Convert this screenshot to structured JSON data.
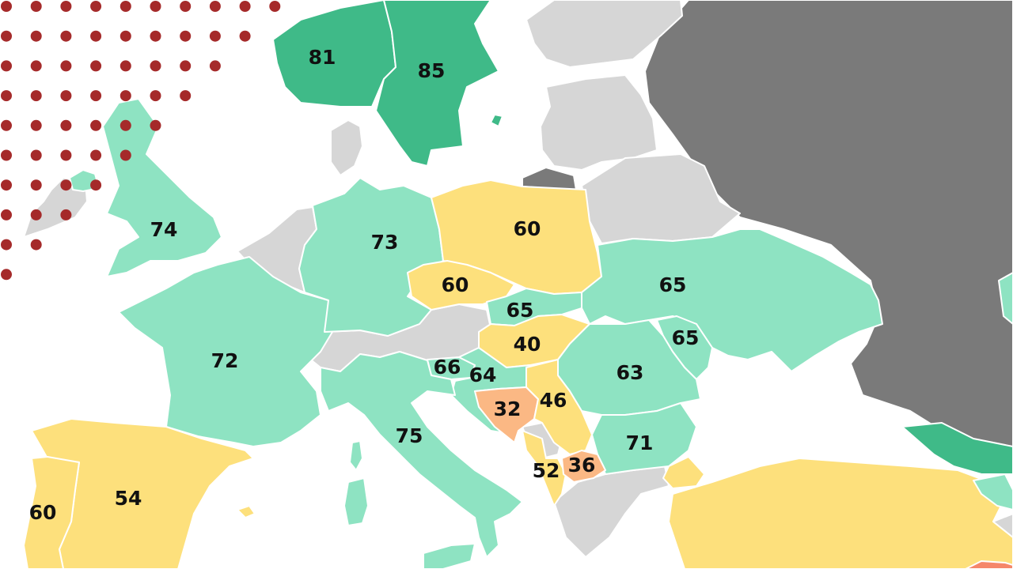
{
  "colors": {
    "very_high": "#3fba88",
    "high": "#8ee3c2",
    "medium": "#fde07c",
    "low": "#fbb884",
    "very_low": "#f5876a",
    "no_data": "#d6d6d6",
    "outside": "#7a7a7a",
    "sea": "#ffffff",
    "dot": "#a52a2a"
  },
  "scores": {
    "norway": "81",
    "sweden": "85",
    "uk": "74",
    "germany": "73",
    "poland": "60",
    "czechia": "60",
    "slovakia": "65",
    "ukraine": "65",
    "moldova": "65",
    "hungary": "40",
    "romania": "63",
    "france": "72",
    "slovenia": "66",
    "croatia": "64",
    "bosnia": "32",
    "serbia": "46",
    "italy": "75",
    "bulgaria": "71",
    "montenegro_albania": "52",
    "north_macedonia": "36",
    "spain": "54",
    "portugal": "60"
  }
}
